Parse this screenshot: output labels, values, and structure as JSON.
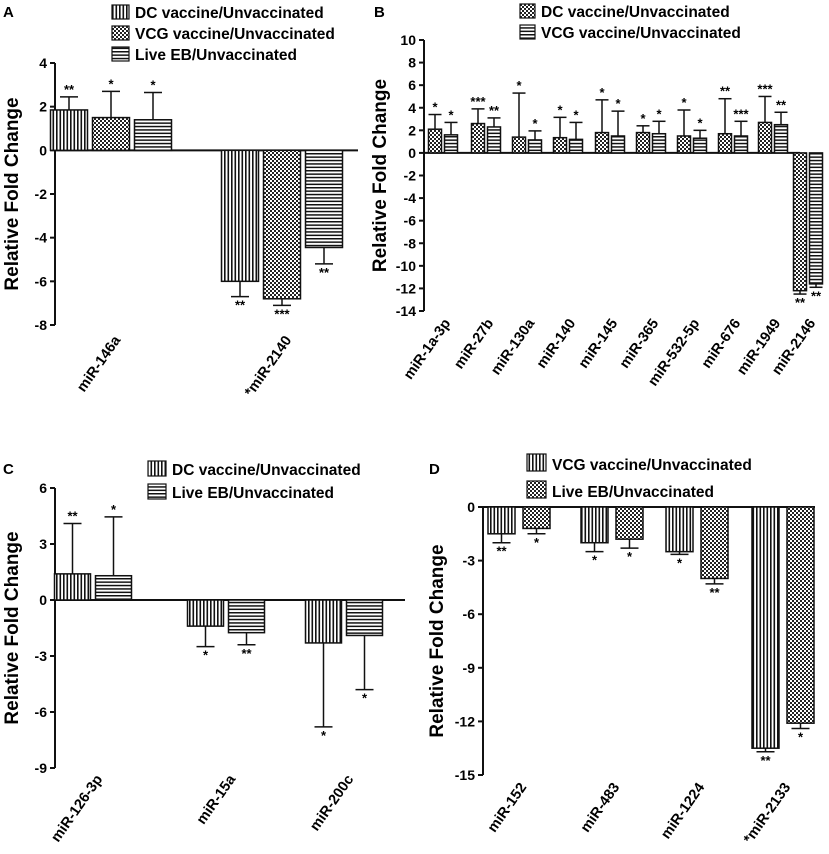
{
  "chart_data": [
    {
      "panel": "A",
      "type": "bar",
      "ylabel": "Relative Fold Change",
      "ylim": [
        -8,
        4
      ],
      "yticks": [
        4,
        2,
        0,
        -2,
        -4,
        -6,
        -8
      ],
      "categories": [
        "miR-146a",
        "miR-2140"
      ],
      "category_labels": [
        "miR-146a",
        "*miR-2140"
      ],
      "series": [
        {
          "name": "DC vaccine/Unvaccinated",
          "pattern": "vertical",
          "values": [
            1.85,
            -6.0
          ],
          "errors": [
            0.6,
            0.7
          ],
          "sig": [
            "**",
            "**"
          ]
        },
        {
          "name": "VCG vaccine/Unvaccinated",
          "pattern": "checker",
          "values": [
            1.5,
            -6.8
          ],
          "errors": [
            1.2,
            0.3
          ],
          "sig": [
            "*",
            "***"
          ]
        },
        {
          "name": "Live EB/Unvaccinated",
          "pattern": "horizontal",
          "values": [
            1.4,
            -4.45
          ],
          "errors": [
            1.25,
            0.75
          ],
          "sig": [
            "*",
            "**"
          ]
        }
      ]
    },
    {
      "panel": "B",
      "type": "bar",
      "ylabel": "Relative Fold Change",
      "ylim": [
        -14,
        10
      ],
      "yticks": [
        10,
        8,
        6,
        4,
        2,
        0,
        -2,
        -4,
        -6,
        -8,
        -10,
        -12,
        -14
      ],
      "categories": [
        "miR-1a-3p",
        "miR-27b",
        "miR-130a",
        "miR-140",
        "miR-145",
        "miR-365",
        "miR-532-5p",
        "miR-676",
        "miR-1949",
        "miR-2146"
      ],
      "category_labels": [
        "miR-1a-3p",
        "miR-27b",
        "miR-130a",
        "miR-140",
        "miR-145",
        "miR-365",
        "miR-532-5p",
        "miR-676",
        "miR-1949",
        "miR-2146"
      ],
      "series": [
        {
          "name": "DC vaccine/Unvaccinated",
          "pattern": "checker",
          "values": [
            2.1,
            2.6,
            1.4,
            1.35,
            1.8,
            1.8,
            1.5,
            1.7,
            2.7,
            -12.2
          ],
          "errors": [
            1.3,
            1.3,
            3.9,
            1.8,
            2.9,
            0.6,
            2.3,
            3.1,
            2.3,
            0.3
          ],
          "sig": [
            "*",
            "***",
            "*",
            "*",
            "*",
            "*",
            "*",
            "**",
            "***",
            "**"
          ]
        },
        {
          "name": "VCG vaccine/Unvaccinated",
          "pattern": "horizontal",
          "values": [
            1.6,
            2.3,
            1.15,
            1.2,
            1.5,
            1.7,
            1.3,
            1.5,
            2.5,
            -11.6
          ],
          "errors": [
            1.1,
            0.8,
            0.8,
            1.5,
            2.2,
            1.1,
            0.7,
            1.3,
            1.1,
            0.3
          ],
          "sig": [
            "*",
            "**",
            "*",
            "*",
            "*",
            "*",
            "*",
            "***",
            "**",
            "**"
          ]
        }
      ]
    },
    {
      "panel": "C",
      "type": "bar",
      "ylabel": "Relative Fold Change",
      "ylim": [
        -9,
        6
      ],
      "yticks": [
        6,
        3,
        0,
        -3,
        -6,
        -9
      ],
      "categories": [
        "miR-126-3p",
        "miR-15a",
        "miR-200c"
      ],
      "category_labels": [
        "miR-126-3p",
        "miR-15a",
        "miR-200c"
      ],
      "series": [
        {
          "name": "DC vaccine/Unvaccinated",
          "pattern": "vertical",
          "values": [
            1.4,
            -1.4,
            -2.3
          ],
          "errors": [
            2.7,
            1.1,
            4.5
          ],
          "sig": [
            "**",
            "*",
            "*"
          ]
        },
        {
          "name": "Live EB/Unvaccinated",
          "pattern": "horizontal",
          "values": [
            1.3,
            -1.75,
            -1.9
          ],
          "errors": [
            3.15,
            0.65,
            2.9
          ],
          "sig": [
            "*",
            "**",
            "*"
          ]
        }
      ]
    },
    {
      "panel": "D",
      "type": "bar",
      "ylabel": "Relative Fold Change",
      "ylim": [
        -15,
        0
      ],
      "yticks": [
        0,
        -3,
        -6,
        -9,
        -12,
        -15
      ],
      "categories": [
        "miR-152",
        "miR-483",
        "miR-1224",
        "miR-2133"
      ],
      "category_labels": [
        "miR-152",
        "miR-483",
        "miR-1224",
        "*miR-2133"
      ],
      "series": [
        {
          "name": "VCG vaccine/Unvaccinated",
          "pattern": "vertical",
          "values": [
            -1.5,
            -2.0,
            -2.5,
            -13.5
          ],
          "errors": [
            0.5,
            0.5,
            0.15,
            0.2
          ],
          "sig": [
            "**",
            "*",
            "*",
            "**"
          ]
        },
        {
          "name": "Live EB/Unvaccinated",
          "pattern": "checker",
          "values": [
            -1.2,
            -1.8,
            -4.0,
            -12.1
          ],
          "errors": [
            0.3,
            0.5,
            0.3,
            0.3
          ],
          "sig": [
            "*",
            "*",
            "**",
            "*"
          ]
        }
      ]
    }
  ],
  "panel_labels": {
    "A": "A",
    "B": "B",
    "C": "C",
    "D": "D"
  }
}
